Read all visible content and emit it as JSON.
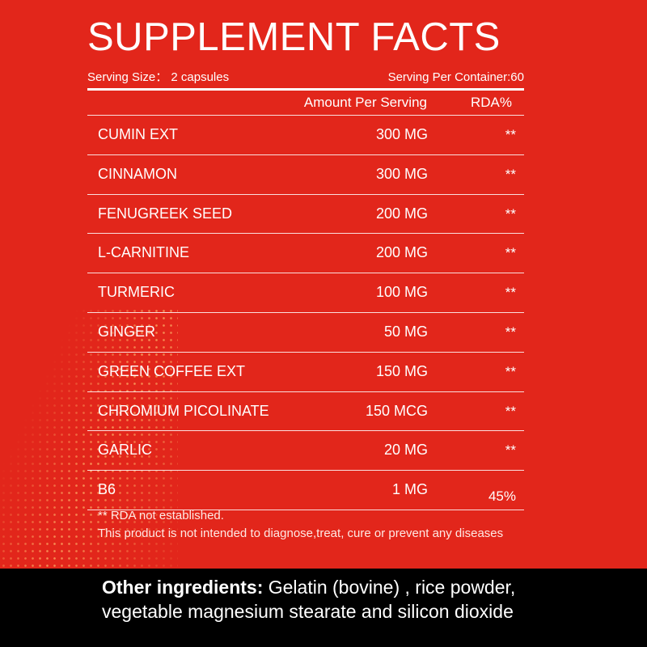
{
  "title": "SUPPLEMENT FACTS",
  "serving_size": "Serving Size： 2 capsules",
  "servings_per_container": "Serving Per Container:60",
  "headers": {
    "amount": "Amount Per Serving",
    "rda": "RDA%"
  },
  "ingredients": [
    {
      "name": "CUMIN EXT",
      "amount": "300 MG",
      "rda": "**"
    },
    {
      "name": "CINNAMON",
      "amount": "300 MG",
      "rda": "**"
    },
    {
      "name": "FENUGREEK SEED",
      "amount": "200 MG",
      "rda": "**"
    },
    {
      "name": "L-CARNITINE",
      "amount": "200 MG",
      "rda": "**"
    },
    {
      "name": "TURMERIC",
      "amount": "100 MG",
      "rda": "**"
    },
    {
      "name": "GINGER",
      "amount": "50 MG",
      "rda": "**"
    },
    {
      "name": "GREEN COFFEE EXT",
      "amount": "150 MG",
      "rda": "**"
    },
    {
      "name": "CHROMIUM PICOLINATE",
      "amount": "150 MCG",
      "rda": "**"
    },
    {
      "name": "GARLIC",
      "amount": "20 MG",
      "rda": "**"
    },
    {
      "name": "B6",
      "amount": "1 MG",
      "rda": "45%"
    }
  ],
  "footnotes": {
    "rda_note": "** RDA not established.",
    "disclaimer": "This product is not intended to diagnose,treat, cure or prevent any diseases"
  },
  "other_ingredients": {
    "label": "Other ingredients:",
    "text": " Gelatin  (bovine) , rice powder,",
    "text_line2": "vegetable magnesium stearate and silicon dioxide"
  },
  "colors": {
    "background": "#e2261b",
    "band": "#000000",
    "text": "#ffffff"
  }
}
